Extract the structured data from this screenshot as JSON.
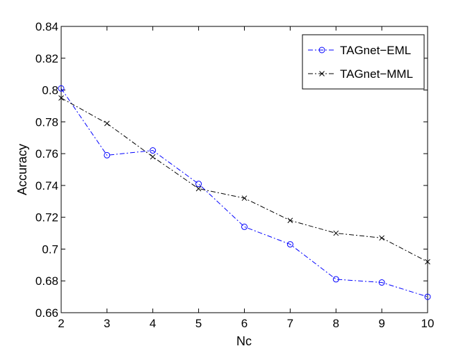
{
  "chart_data": {
    "type": "line",
    "xlabel": "Nc",
    "ylabel": "Accuracy",
    "xlim": [
      2,
      10
    ],
    "ylim": [
      0.66,
      0.84
    ],
    "x_ticks": [
      2,
      3,
      4,
      5,
      6,
      7,
      8,
      9,
      10
    ],
    "y_ticks": [
      0.66,
      0.68,
      0.7,
      0.72,
      0.74,
      0.76,
      0.78,
      0.8,
      0.82,
      0.84
    ],
    "y_tick_labels": [
      "0.66",
      "0.68",
      "0.7",
      "0.72",
      "0.74",
      "0.76",
      "0.78",
      "0.8",
      "0.82",
      "0.84"
    ],
    "grid": false,
    "legend_position": "top-right",
    "x": [
      2,
      3,
      4,
      5,
      6,
      7,
      8,
      9,
      10
    ],
    "series": [
      {
        "name": "TAGnet−EML",
        "values": [
          0.801,
          0.759,
          0.762,
          0.741,
          0.714,
          0.703,
          0.681,
          0.679,
          0.67
        ],
        "color": "#0000ff",
        "marker": "circle",
        "line_style": "dash-dot"
      },
      {
        "name": "TAGnet−MML",
        "values": [
          0.795,
          0.779,
          0.758,
          0.738,
          0.732,
          0.718,
          0.71,
          0.707,
          0.692
        ],
        "color": "#000000",
        "marker": "x",
        "line_style": "dash-dot"
      }
    ]
  }
}
